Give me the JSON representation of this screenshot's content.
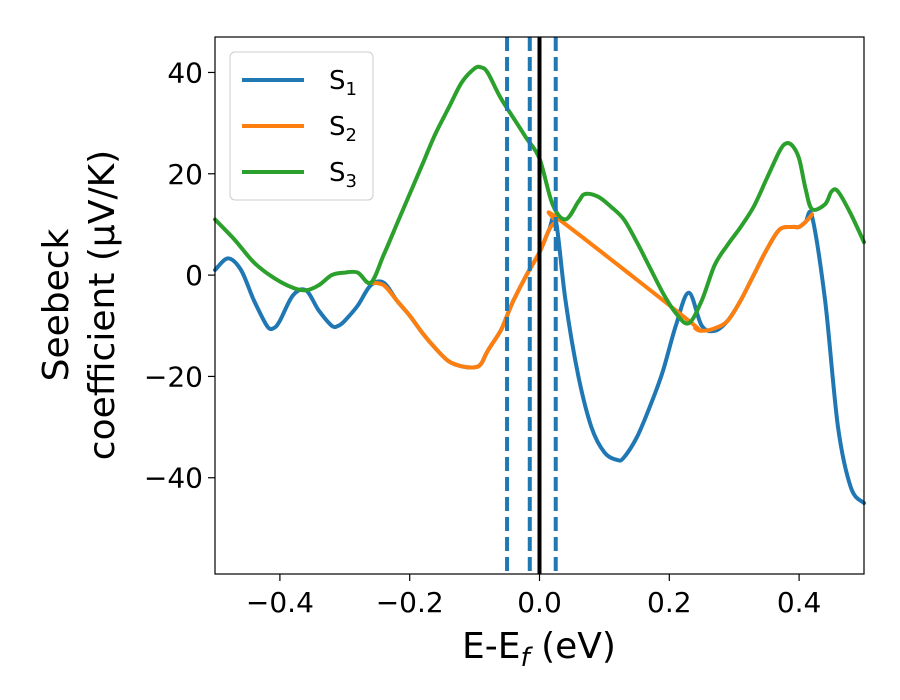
{
  "chart_data": {
    "type": "line",
    "xlabel": "E-E",
    "xlabel_sub": "f",
    "xlabel_unit": " (eV)",
    "ylabel_line1": "Seebeck",
    "ylabel_line2": "coefficient  (μV/K)",
    "xlim": [
      -0.5,
      0.5
    ],
    "ylim": [
      -59,
      47
    ],
    "xticks": [
      -0.4,
      -0.2,
      0.0,
      0.2,
      0.4
    ],
    "xtick_labels": [
      "−0.4",
      "−0.2",
      "0.0",
      "0.2",
      "0.4"
    ],
    "yticks": [
      -40,
      -20,
      0,
      20,
      40
    ],
    "ytick_labels": [
      "−40",
      "−20",
      "0",
      "20",
      "40"
    ],
    "grid": false,
    "legend_position": "top-left",
    "series": [
      {
        "name": "S",
        "name_sub": "1",
        "color": "#1f77b4",
        "x": [
          -0.5,
          -0.48,
          -0.46,
          -0.44,
          -0.42,
          -0.41,
          -0.4,
          -0.38,
          -0.36,
          -0.34,
          -0.32,
          -0.31,
          -0.3,
          -0.28,
          -0.26,
          -0.24,
          -0.22,
          -0.2,
          -0.18,
          -0.16,
          -0.14,
          -0.12,
          -0.1,
          -0.09,
          -0.08,
          -0.06,
          -0.05,
          -0.04,
          -0.02,
          0.0,
          0.015,
          0.025,
          0.04,
          0.06,
          0.08,
          0.1,
          0.12,
          0.13,
          0.15,
          0.17,
          0.19,
          0.21,
          0.23,
          0.25,
          0.27,
          0.29,
          0.31,
          0.33,
          0.35,
          0.37,
          0.39,
          0.4,
          0.41,
          0.42,
          0.44,
          0.46,
          0.48,
          0.5
        ],
        "y": [
          1.0,
          3.3,
          1.0,
          -5.0,
          -10.0,
          -10.5,
          -9.0,
          -4.0,
          -3.0,
          -7.0,
          -10.0,
          -10.0,
          -9.0,
          -6.0,
          -2.0,
          -1.5,
          -5.0,
          -8.0,
          -11.5,
          -14.5,
          -17.0,
          -18.0,
          -18.2,
          -17.5,
          -15.0,
          -11.0,
          -8.0,
          -5.0,
          0.0,
          4.5,
          9.0,
          11.0,
          -5.0,
          -20.0,
          -30.0,
          -35.0,
          -36.5,
          -36.0,
          -32.0,
          -26.0,
          -19.0,
          -10.0,
          -3.5,
          -10.0,
          -11.0,
          -9.0,
          -5.0,
          0.0,
          5.0,
          9.0,
          9.5,
          9.5,
          10.5,
          11.5,
          -5.0,
          -30.0,
          -42.0,
          -45.0
        ]
      },
      {
        "name": "S",
        "name_sub": "2",
        "color": "#ff7f0e",
        "x": [
          -0.26,
          -0.24,
          -0.22,
          -0.2,
          -0.18,
          -0.16,
          -0.14,
          -0.12,
          -0.1,
          -0.09,
          -0.08,
          -0.06,
          -0.05,
          -0.04,
          -0.02,
          0.0,
          0.015,
          0.025,
          0.03,
          0.23,
          0.24,
          0.25,
          0.27,
          0.29,
          0.31,
          0.33,
          0.35,
          0.37,
          0.39,
          0.4,
          0.41,
          0.42
        ],
        "y": [
          -1.5,
          -2.0,
          -5.0,
          -8.0,
          -11.5,
          -14.5,
          -17.0,
          -18.0,
          -18.2,
          -17.5,
          -15.0,
          -11.0,
          -8.0,
          -5.0,
          0.0,
          4.5,
          9.0,
          10.5,
          11.0,
          -9.0,
          -10.5,
          -11.0,
          -10.5,
          -9.0,
          -5.0,
          0.0,
          5.0,
          9.0,
          9.5,
          9.5,
          10.5,
          12.0
        ]
      },
      {
        "name": "S",
        "name_sub": "3",
        "color": "#2ca02c",
        "x": [
          -0.5,
          -0.47,
          -0.44,
          -0.41,
          -0.38,
          -0.36,
          -0.34,
          -0.32,
          -0.3,
          -0.28,
          -0.26,
          -0.24,
          -0.22,
          -0.2,
          -0.18,
          -0.16,
          -0.14,
          -0.12,
          -0.1,
          -0.09,
          -0.08,
          -0.06,
          -0.04,
          -0.02,
          0.0,
          0.02,
          0.04,
          0.06,
          0.07,
          0.09,
          0.11,
          0.13,
          0.15,
          0.17,
          0.19,
          0.21,
          0.23,
          0.25,
          0.27,
          0.29,
          0.31,
          0.33,
          0.35,
          0.37,
          0.38,
          0.39,
          0.4,
          0.41,
          0.42,
          0.44,
          0.45,
          0.46,
          0.48,
          0.5
        ],
        "y": [
          11.0,
          7.0,
          2.5,
          -0.5,
          -2.5,
          -3.0,
          -2.0,
          0.0,
          0.5,
          0.5,
          -1.5,
          4.0,
          10.0,
          16.0,
          22.0,
          28.0,
          33.0,
          38.0,
          40.8,
          41.0,
          40.0,
          35.0,
          31.0,
          27.0,
          23.0,
          14.0,
          11.0,
          14.5,
          16.0,
          15.5,
          13.5,
          11.0,
          6.5,
          1.5,
          -3.5,
          -7.5,
          -9.5,
          -5.0,
          2.0,
          6.0,
          9.5,
          13.5,
          19.0,
          24.5,
          26.0,
          25.5,
          23.0,
          17.0,
          13.0,
          14.0,
          16.5,
          16.5,
          12.0,
          6.5
        ]
      }
    ],
    "vlines": [
      {
        "x": -0.05,
        "style": "dashed",
        "color": "#1f77b4"
      },
      {
        "x": -0.015,
        "style": "dashed",
        "color": "#1f77b4"
      },
      {
        "x": 0.0,
        "style": "solid",
        "color": "#000000"
      },
      {
        "x": 0.025,
        "style": "dashed",
        "color": "#1f77b4"
      }
    ]
  }
}
